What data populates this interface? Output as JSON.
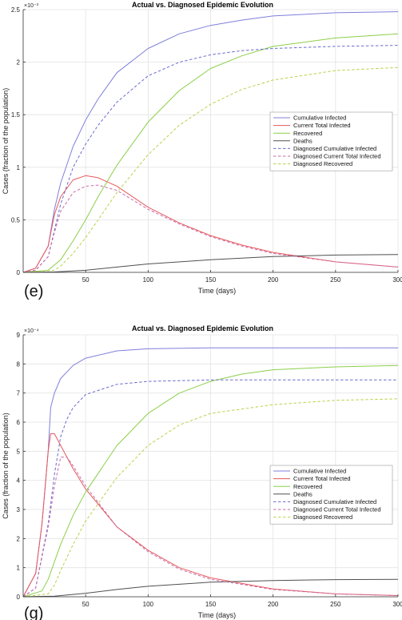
{
  "chart_data": [
    {
      "type": "line",
      "panel_label": "(e)",
      "title": "Actual vs. Diagnosed Epidemic Evolution",
      "xlabel": "Time (days)",
      "ylabel": "Cases (fraction of the population)",
      "y_multiplier": "×10⁻³",
      "xlim": [
        0,
        300
      ],
      "ylim": [
        0,
        2.5
      ],
      "xticks": [
        50,
        100,
        150,
        200,
        250,
        300
      ],
      "yticks": [
        0,
        0.5,
        1,
        1.5,
        2,
        2.5
      ],
      "ytick_labels": [
        "0",
        "0.5",
        "1",
        "1.5",
        "2",
        "2.5"
      ],
      "grid": true,
      "legend_position": "center-right",
      "series": [
        {
          "name": "Cumulative Infected",
          "color": "#7f7fdc",
          "dash": "solid",
          "x": [
            0,
            10,
            20,
            25,
            30,
            40,
            50,
            60,
            75,
            100,
            125,
            150,
            175,
            200,
            250,
            300
          ],
          "y": [
            0,
            0.04,
            0.25,
            0.6,
            0.85,
            1.2,
            1.45,
            1.65,
            1.9,
            2.13,
            2.27,
            2.35,
            2.4,
            2.44,
            2.47,
            2.48
          ]
        },
        {
          "name": "Current Total Infected",
          "color": "#e8585a",
          "dash": "solid",
          "x": [
            0,
            10,
            20,
            25,
            30,
            40,
            50,
            60,
            75,
            100,
            125,
            150,
            175,
            200,
            250,
            300
          ],
          "y": [
            0,
            0.04,
            0.25,
            0.55,
            0.72,
            0.88,
            0.92,
            0.9,
            0.82,
            0.62,
            0.47,
            0.35,
            0.26,
            0.19,
            0.1,
            0.05
          ]
        },
        {
          "name": "Recovered",
          "color": "#8ccf4a",
          "dash": "solid",
          "x": [
            0,
            20,
            30,
            40,
            50,
            60,
            75,
            100,
            125,
            150,
            175,
            200,
            250,
            300
          ],
          "y": [
            0,
            0.02,
            0.12,
            0.3,
            0.5,
            0.72,
            1.02,
            1.43,
            1.73,
            1.94,
            2.06,
            2.15,
            2.23,
            2.27
          ]
        },
        {
          "name": "Deaths",
          "color": "#505050",
          "dash": "solid",
          "x": [
            0,
            25,
            50,
            75,
            100,
            150,
            200,
            250,
            300
          ],
          "y": [
            0,
            0.004,
            0.02,
            0.05,
            0.08,
            0.12,
            0.15,
            0.165,
            0.17
          ]
        },
        {
          "name": "Diagnosed Cumulative Infected",
          "color": "#6a6ad0",
          "dash": "dashed",
          "x": [
            0,
            10,
            20,
            25,
            30,
            40,
            50,
            60,
            75,
            100,
            125,
            150,
            175,
            200,
            250,
            300
          ],
          "y": [
            0,
            0.02,
            0.15,
            0.4,
            0.65,
            1.0,
            1.22,
            1.4,
            1.62,
            1.87,
            2.0,
            2.07,
            2.11,
            2.13,
            2.15,
            2.16
          ]
        },
        {
          "name": "Diagnosed Current Total Infected",
          "color": "#c86aa8",
          "dash": "dashed",
          "x": [
            0,
            10,
            20,
            25,
            30,
            40,
            50,
            60,
            75,
            100,
            125,
            150,
            175,
            200,
            250,
            300
          ],
          "y": [
            0,
            0.02,
            0.15,
            0.38,
            0.58,
            0.76,
            0.82,
            0.83,
            0.78,
            0.6,
            0.46,
            0.34,
            0.25,
            0.18,
            0.1,
            0.05
          ]
        },
        {
          "name": "Diagnosed Recovered",
          "color": "#b6d34a",
          "dash": "dashed",
          "x": [
            0,
            25,
            30,
            40,
            50,
            60,
            75,
            100,
            125,
            150,
            175,
            200,
            250,
            300
          ],
          "y": [
            0,
            0.02,
            0.06,
            0.18,
            0.33,
            0.5,
            0.76,
            1.12,
            1.4,
            1.6,
            1.74,
            1.83,
            1.92,
            1.95
          ]
        }
      ]
    },
    {
      "type": "line",
      "panel_label": "(g)",
      "title": "Actual vs. Diagnosed Epidemic Evolution",
      "xlabel": "Time (days)",
      "ylabel": "Cases (fraction of the population)",
      "y_multiplier": "×10⁻⁴",
      "xlim": [
        0,
        300
      ],
      "ylim": [
        0,
        9
      ],
      "xticks": [
        50,
        100,
        150,
        200,
        250,
        300
      ],
      "yticks": [
        0,
        1,
        2,
        3,
        4,
        5,
        6,
        7,
        8,
        9
      ],
      "ytick_labels": [
        "0",
        "1",
        "2",
        "3",
        "4",
        "5",
        "6",
        "7",
        "8",
        "9"
      ],
      "grid": true,
      "legend_position": "center-right",
      "series": [
        {
          "name": "Cumulative Infected",
          "color": "#7f7fdc",
          "dash": "solid",
          "x": [
            0,
            10,
            15,
            20,
            22,
            25,
            30,
            40,
            50,
            75,
            100,
            150,
            200,
            250,
            300
          ],
          "y": [
            0,
            0.8,
            2.5,
            5.0,
            6.5,
            7.0,
            7.5,
            7.95,
            8.2,
            8.45,
            8.52,
            8.55,
            8.55,
            8.55,
            8.55
          ]
        },
        {
          "name": "Current Total Infected",
          "color": "#e8585a",
          "dash": "solid",
          "x": [
            0,
            10,
            15,
            20,
            22,
            25,
            30,
            40,
            50,
            75,
            100,
            125,
            150,
            200,
            250,
            300
          ],
          "y": [
            0,
            0.8,
            2.5,
            5.0,
            5.6,
            5.6,
            5.2,
            4.4,
            3.7,
            2.4,
            1.6,
            1.0,
            0.65,
            0.27,
            0.1,
            0.04
          ]
        },
        {
          "name": "Recovered",
          "color": "#8ccf4a",
          "dash": "solid",
          "x": [
            0,
            15,
            20,
            25,
            30,
            40,
            50,
            75,
            100,
            125,
            150,
            175,
            200,
            250,
            300
          ],
          "y": [
            0,
            0.2,
            0.6,
            1.2,
            1.8,
            2.8,
            3.6,
            5.2,
            6.3,
            7.0,
            7.4,
            7.65,
            7.8,
            7.9,
            7.95
          ]
        },
        {
          "name": "Deaths",
          "color": "#505050",
          "dash": "solid",
          "x": [
            0,
            25,
            50,
            75,
            100,
            150,
            200,
            250,
            300
          ],
          "y": [
            0,
            0.02,
            0.12,
            0.25,
            0.36,
            0.5,
            0.56,
            0.59,
            0.6
          ]
        },
        {
          "name": "Diagnosed Cumulative Infected",
          "color": "#6a6ad0",
          "dash": "dashed",
          "x": [
            0,
            10,
            20,
            25,
            30,
            35,
            40,
            50,
            75,
            100,
            150,
            200,
            250,
            300
          ],
          "y": [
            0,
            0.3,
            2.5,
            4.2,
            5.5,
            6.1,
            6.5,
            6.95,
            7.3,
            7.4,
            7.45,
            7.45,
            7.45,
            7.45
          ]
        },
        {
          "name": "Diagnosed Current Total Infected",
          "color": "#c86aa8",
          "dash": "dashed",
          "x": [
            0,
            10,
            20,
            25,
            30,
            35,
            40,
            50,
            75,
            100,
            125,
            150,
            200,
            250,
            300
          ],
          "y": [
            0,
            0.3,
            2.4,
            3.8,
            4.8,
            4.8,
            4.5,
            3.8,
            2.4,
            1.55,
            0.95,
            0.6,
            0.25,
            0.1,
            0.04
          ]
        },
        {
          "name": "Diagnosed Recovered",
          "color": "#b6d34a",
          "dash": "dashed",
          "x": [
            0,
            20,
            25,
            30,
            40,
            50,
            75,
            100,
            125,
            150,
            200,
            250,
            300
          ],
          "y": [
            0,
            0.1,
            0.4,
            0.9,
            1.8,
            2.6,
            4.1,
            5.2,
            5.9,
            6.3,
            6.6,
            6.75,
            6.8
          ]
        }
      ]
    }
  ]
}
